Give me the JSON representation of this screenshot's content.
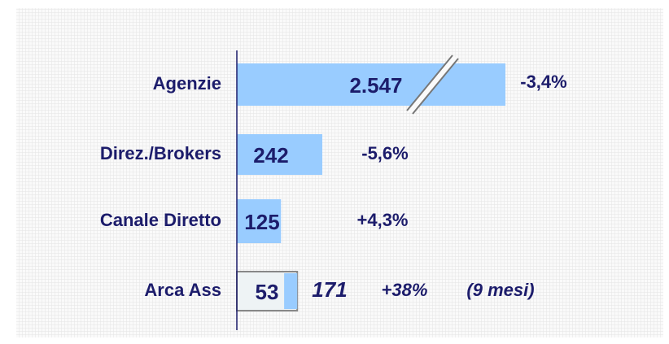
{
  "chart_data": {
    "type": "bar",
    "categories": [
      "Agenzie",
      "Direz./Brokers",
      "Canale Diretto",
      "Arca Ass"
    ],
    "values": [
      2547,
      242,
      125,
      53
    ],
    "value_labels": [
      "2.547",
      "242",
      "125",
      "53"
    ],
    "changes": [
      "-3,4%",
      "-5,6%",
      "+4,3%",
      "+38%"
    ],
    "arca_total": 171,
    "arca_note": "(9 mesi)",
    "color": "#99ccff"
  }
}
